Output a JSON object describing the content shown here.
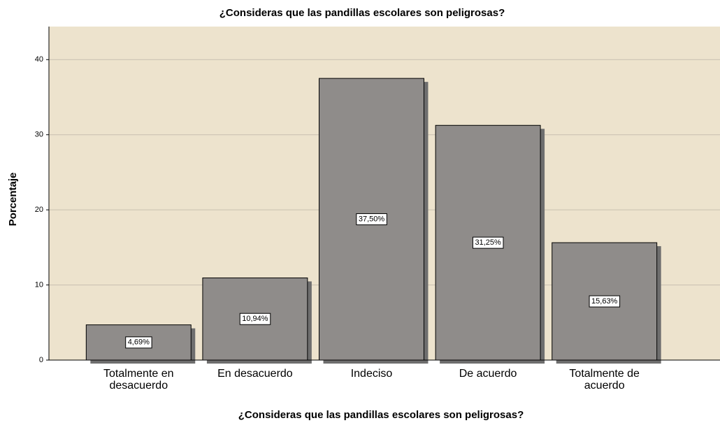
{
  "chart_data": {
    "type": "bar",
    "title": "¿Consideras que las pandillas escolares son peligrosas?",
    "x_label": "¿Consideras que las pandillas escolares son peligrosas?",
    "y_label": "Porcentaje",
    "categories": [
      "Totalmente en desacuerdo",
      "En desacuerdo",
      "Indeciso",
      "De acuerdo",
      "Totalmente de acuerdo"
    ],
    "values": [
      4.69,
      10.94,
      37.5,
      31.25,
      15.63
    ],
    "value_labels": [
      "4,69%",
      "10,94%",
      "37,50%",
      "31,25%",
      "15,63%"
    ],
    "color": "#8f8c8a",
    "background": "#ede3cd",
    "ylim": [
      0,
      44.4
    ],
    "yticks": [
      0,
      10,
      20,
      30,
      40
    ],
    "grid": true
  }
}
